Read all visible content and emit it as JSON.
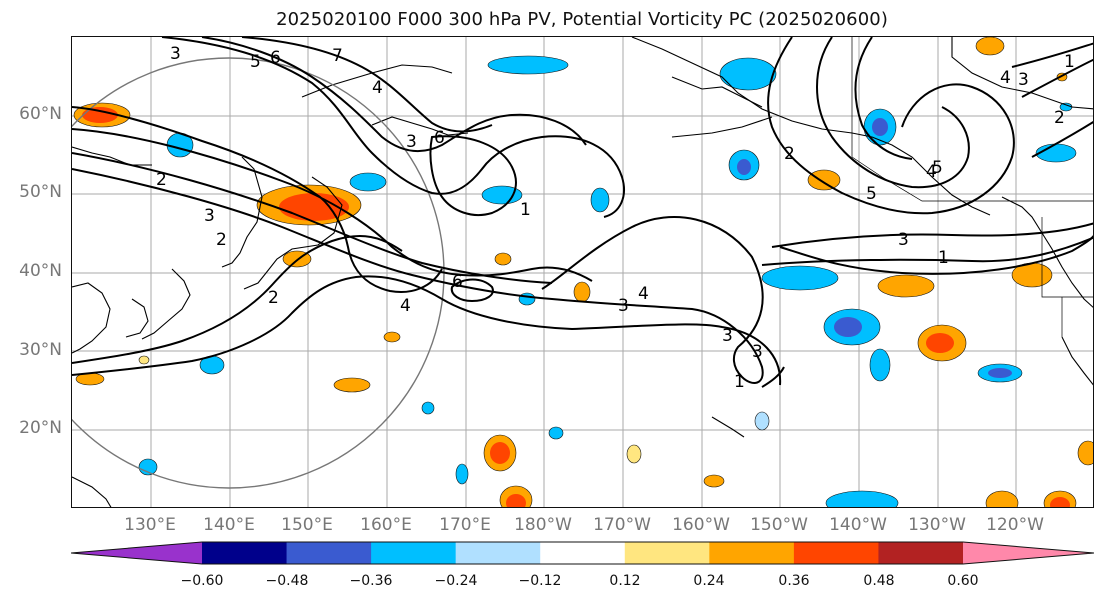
{
  "title": "2025020100 F000 300 hPa PV, Potential Vorticity PC (2025020600)",
  "map": {
    "projection": "cylindrical",
    "lon_range": [
      120,
      250
    ],
    "lat_range": [
      10,
      70
    ],
    "grid": true,
    "latitude_labels": [
      "60°N",
      "50°N",
      "40°N",
      "30°N",
      "20°N"
    ],
    "longitude_labels": [
      "130°E",
      "140°E",
      "150°E",
      "160°E",
      "170°E",
      "180°W",
      "170°W",
      "160°W",
      "150°W",
      "140°W",
      "130°W",
      "120°W"
    ],
    "contour_labels": [
      "3",
      "5",
      "6",
      "7",
      "4",
      "3",
      "2",
      "2",
      "3",
      "4",
      "2",
      "6",
      "6",
      "1",
      "3",
      "4",
      "3",
      "2",
      "5",
      "4",
      "3",
      "1",
      "3",
      "2",
      "1",
      "4",
      "1",
      "5",
      "3"
    ]
  },
  "colorbar": {
    "tick_labels": [
      "−0.60",
      "−0.48",
      "−0.36",
      "−0.24",
      "−0.12",
      "0.12",
      "0.24",
      "0.36",
      "0.48",
      "0.60"
    ],
    "colors": [
      "#9932CC",
      "#00008B",
      "#3A5BD0",
      "#00BFFF",
      "#B0E0FF",
      "#FFFFFF",
      "#FFE680",
      "#FFA500",
      "#FF4500",
      "#B22222",
      "#FF88AA"
    ]
  }
}
